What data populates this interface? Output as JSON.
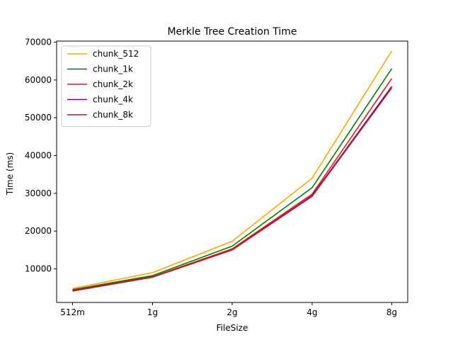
{
  "chart_data": {
    "type": "line",
    "title": "Merkle Tree Creation Time",
    "xlabel": "FileSize",
    "ylabel": "Time (ms)",
    "categories": [
      "512m",
      "1g",
      "2g",
      "4g",
      "8g"
    ],
    "yticks": [
      10000,
      20000,
      30000,
      40000,
      50000,
      60000,
      70000
    ],
    "ylim": [
      1100,
      70300
    ],
    "grid": false,
    "legend_position": "top-left",
    "series": [
      {
        "name": "chunk_512",
        "color": "#ffa500",
        "values": [
          4800,
          9000,
          17300,
          34000,
          67700
        ]
      },
      {
        "name": "chunk_1k",
        "color": "#008000",
        "values": [
          4500,
          8200,
          16000,
          31500,
          63000
        ]
      },
      {
        "name": "chunk_2k",
        "color": "#e41a1c",
        "values": [
          4300,
          7900,
          15300,
          29800,
          60400
        ]
      },
      {
        "name": "chunk_4k",
        "color": "#800080",
        "values": [
          4200,
          7800,
          15000,
          29400,
          58300
        ]
      },
      {
        "name": "chunk_8k",
        "color": "#b22222",
        "values": [
          4100,
          7800,
          15000,
          29200,
          57900
        ]
      }
    ]
  }
}
